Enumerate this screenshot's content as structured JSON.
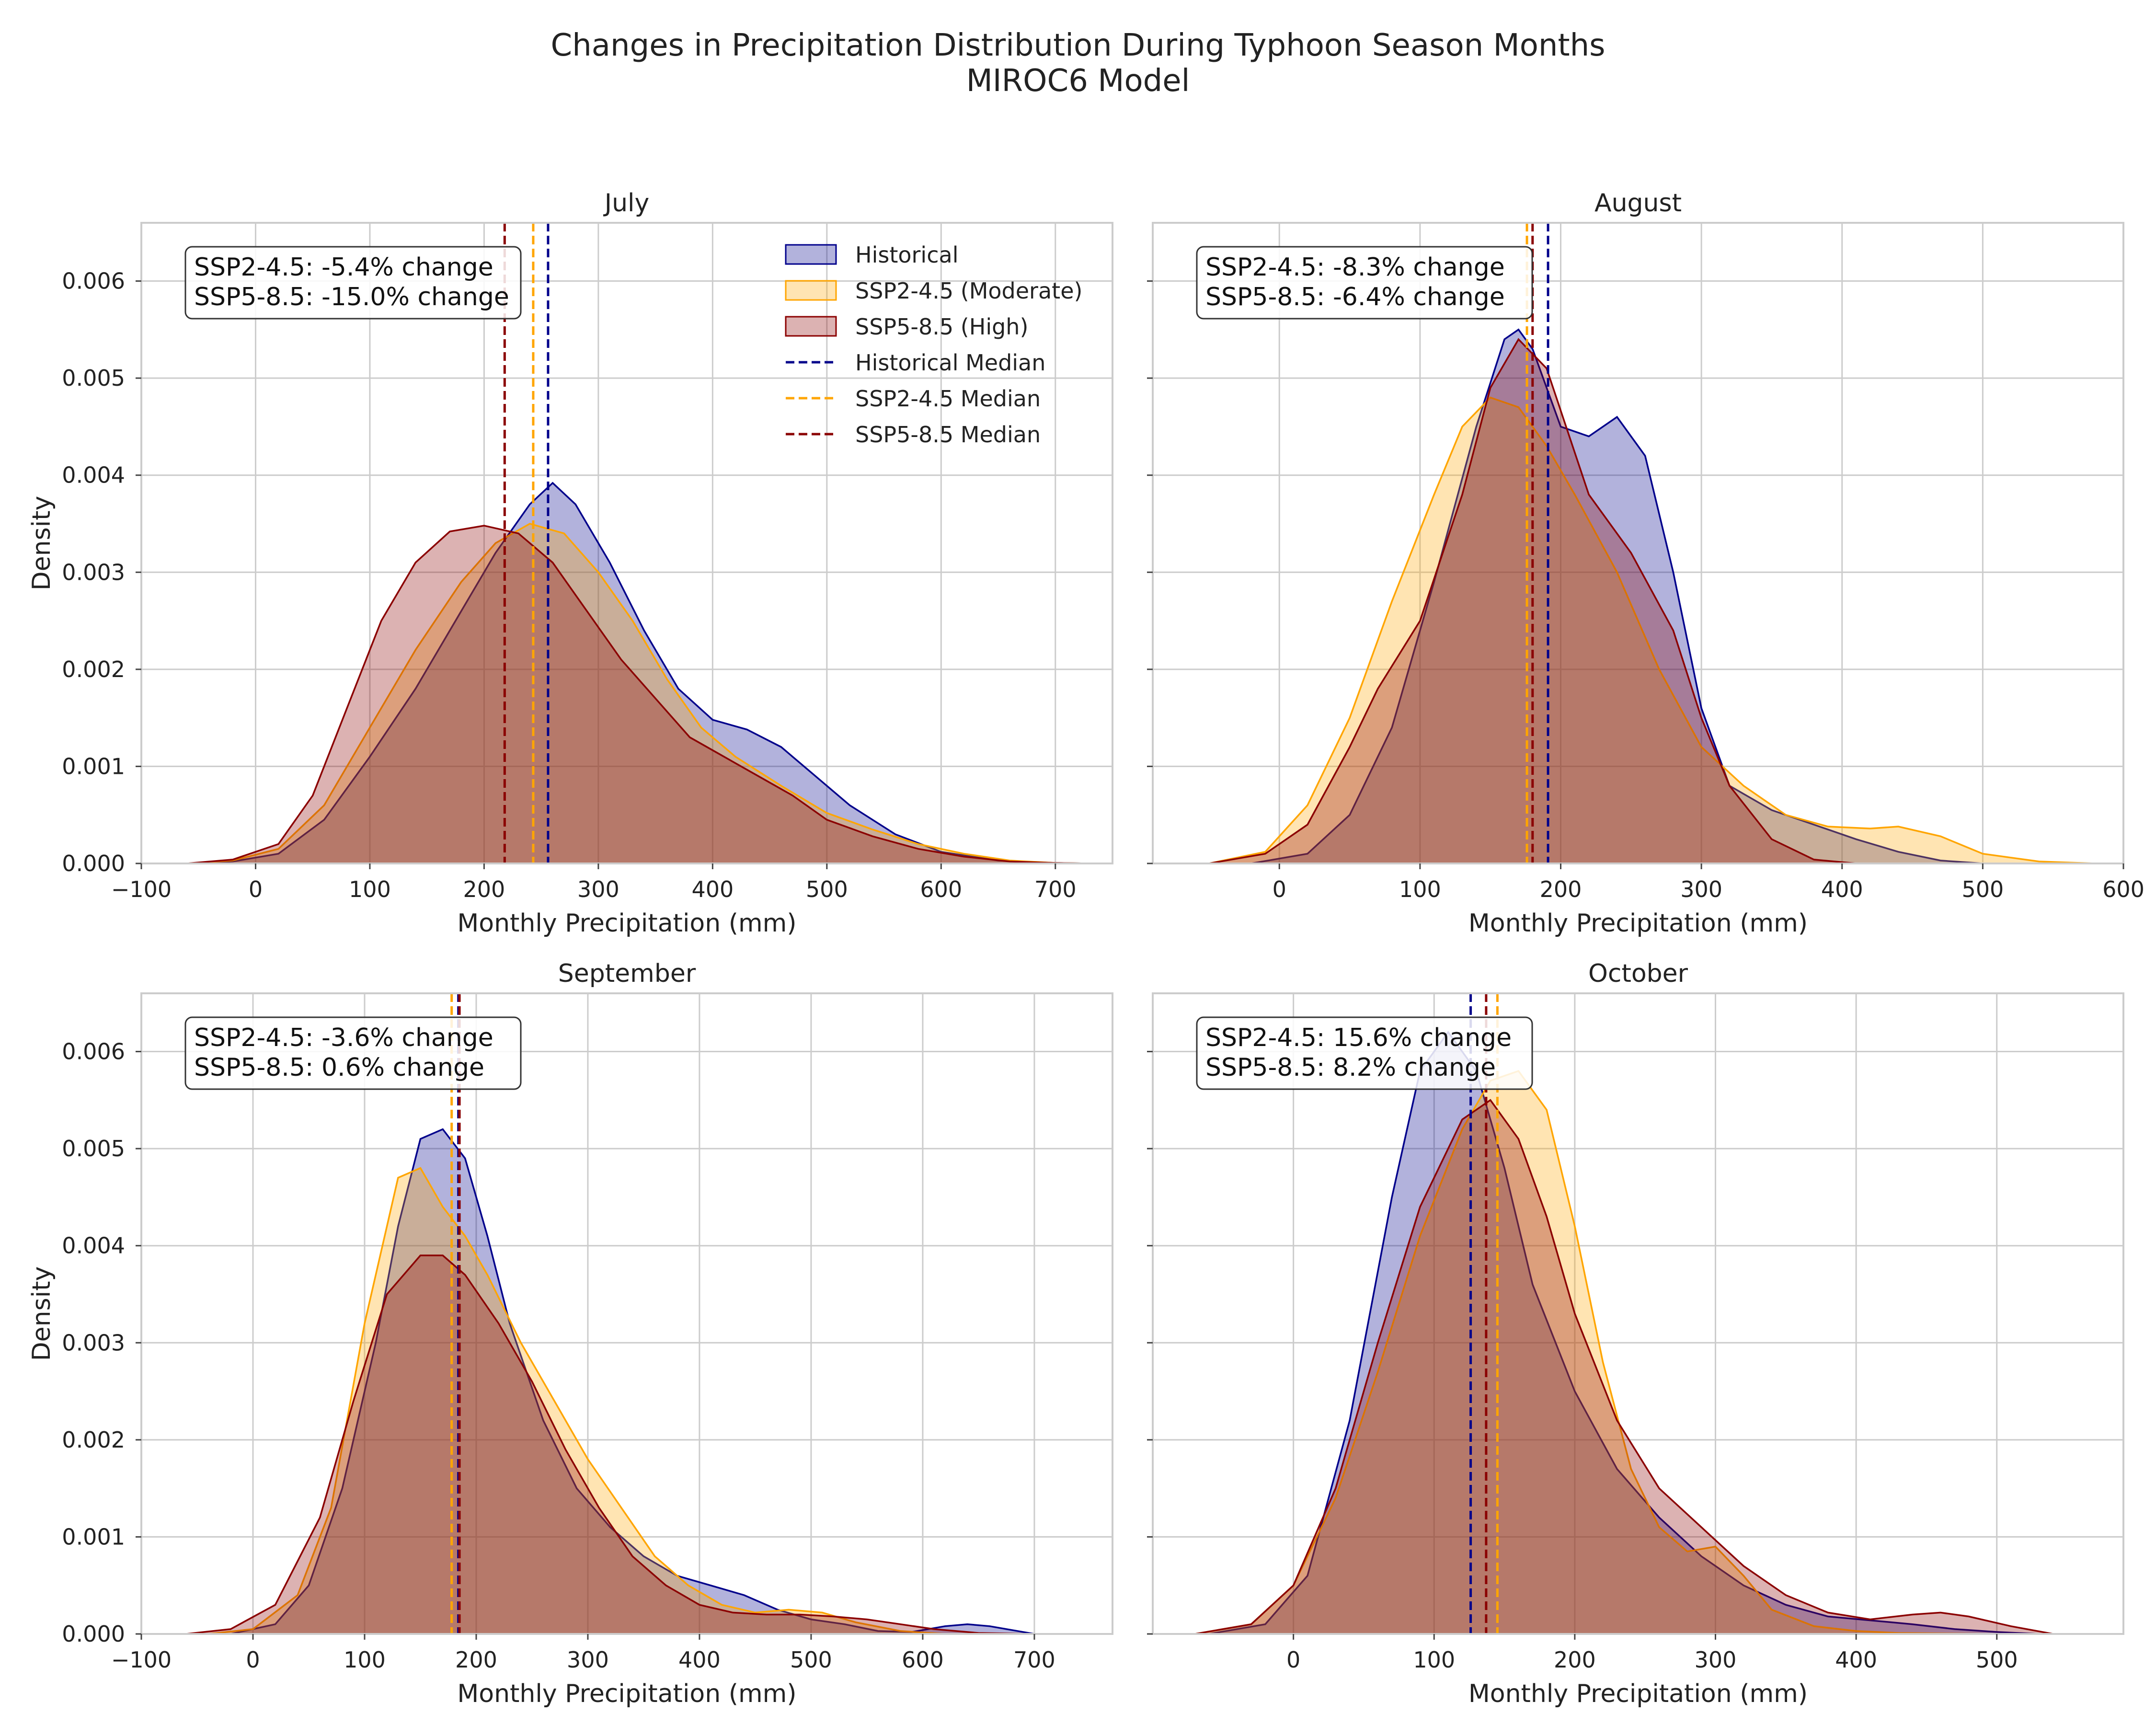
{
  "figure": {
    "title_line1": "Changes in Precipitation Distribution During Typhoon Season Months",
    "title_line2": "MIROC6 Model"
  },
  "colors": {
    "historical": "#00008B",
    "ssp245": "#FFA500",
    "ssp585": "#8B0000",
    "grid": "#CCCCCC",
    "spine": "#CCCCCC"
  },
  "legend": {
    "location": "upper-right (July panel)",
    "entries": [
      {
        "label": "Historical",
        "kind": "fill",
        "series": "historical"
      },
      {
        "label": "SSP2-4.5 (Moderate)",
        "kind": "fill",
        "series": "ssp245"
      },
      {
        "label": "SSP5-8.5 (High)",
        "kind": "fill",
        "series": "ssp585"
      },
      {
        "label": "Historical Median",
        "kind": "line",
        "series": "historical"
      },
      {
        "label": "SSP2-4.5 Median",
        "kind": "line",
        "series": "ssp245"
      },
      {
        "label": "SSP5-8.5 Median",
        "kind": "line",
        "series": "ssp585"
      }
    ]
  },
  "chart_data": [
    {
      "type": "area",
      "title": "July",
      "xlabel": "Monthly Precipitation (mm)",
      "ylabel": "Density",
      "xlim": [
        -100,
        750
      ],
      "ylim": [
        0,
        0.0066
      ],
      "xticks": [
        -100,
        0,
        100,
        200,
        300,
        400,
        500,
        600,
        700
      ],
      "yticks": [
        0,
        0.001,
        0.002,
        0.003,
        0.004,
        0.005,
        0.006
      ],
      "xtick_labels": [
        "−100",
        "0",
        "100",
        "200",
        "300",
        "400",
        "500",
        "600",
        "700"
      ],
      "ytick_labels": [
        "0.000",
        "0.001",
        "0.002",
        "0.003",
        "0.004",
        "0.005",
        "0.006"
      ],
      "annotation_lines": [
        "SSP2-4.5: -5.4% change",
        "SSP5-8.5: -15.0% change"
      ],
      "grid": true,
      "show_legend": true,
      "series": [
        {
          "key": "historical",
          "name": "Historical",
          "median": 256,
          "x": [
            -60,
            -20,
            20,
            60,
            100,
            140,
            180,
            210,
            240,
            260,
            280,
            310,
            340,
            370,
            400,
            430,
            460,
            490,
            520,
            560,
            600,
            650,
            700,
            730
          ],
          "y": [
            0,
            2e-05,
            0.0001,
            0.00045,
            0.0011,
            0.0018,
            0.0026,
            0.0032,
            0.0037,
            0.00392,
            0.0037,
            0.0031,
            0.0024,
            0.0018,
            0.00148,
            0.00138,
            0.0012,
            0.0009,
            0.0006,
            0.0003,
            0.00012,
            3e-05,
            5e-06,
            0
          ]
        },
        {
          "key": "ssp245",
          "name": "SSP2-4.5 (Moderate)",
          "median": 243,
          "x": [
            -60,
            -20,
            20,
            60,
            100,
            140,
            180,
            210,
            240,
            270,
            300,
            330,
            360,
            390,
            420,
            460,
            500,
            540,
            580,
            620,
            660,
            700,
            730
          ],
          "y": [
            0,
            3e-05,
            0.00015,
            0.0006,
            0.0014,
            0.0022,
            0.0029,
            0.0033,
            0.0035,
            0.0034,
            0.003,
            0.0025,
            0.0019,
            0.0014,
            0.0011,
            0.0008,
            0.00052,
            0.00035,
            0.0002,
            0.0001,
            3e-05,
            5e-06,
            0
          ]
        },
        {
          "key": "ssp585",
          "name": "SSP5-8.5 (High)",
          "median": 218,
          "x": [
            -60,
            -20,
            20,
            50,
            80,
            110,
            140,
            170,
            200,
            230,
            260,
            290,
            320,
            350,
            380,
            410,
            440,
            470,
            500,
            540,
            580,
            620,
            660,
            700,
            730
          ],
          "y": [
            0,
            4e-05,
            0.0002,
            0.0007,
            0.0016,
            0.0025,
            0.0031,
            0.00342,
            0.00348,
            0.0034,
            0.0031,
            0.0026,
            0.0021,
            0.0017,
            0.0013,
            0.0011,
            0.0009,
            0.0007,
            0.00045,
            0.00028,
            0.00015,
            7e-05,
            2e-05,
            5e-06,
            0
          ]
        }
      ]
    },
    {
      "type": "area",
      "title": "August",
      "xlabel": "Monthly Precipitation (mm)",
      "ylabel": "",
      "xlim": [
        -90,
        600
      ],
      "ylim": [
        0,
        0.0066
      ],
      "xticks": [
        0,
        100,
        200,
        300,
        400,
        500,
        600
      ],
      "yticks": [
        0,
        0.001,
        0.002,
        0.003,
        0.004,
        0.005,
        0.006
      ],
      "xtick_labels": [
        "0",
        "100",
        "200",
        "300",
        "400",
        "500",
        "600"
      ],
      "ytick_labels": [],
      "annotation_lines": [
        "SSP2-4.5: -8.3% change",
        "SSP5-8.5: -6.4% change"
      ],
      "grid": true,
      "show_legend": false,
      "series": [
        {
          "key": "historical",
          "name": "Historical",
          "median": 191,
          "x": [
            -20,
            20,
            50,
            80,
            110,
            140,
            160,
            170,
            180,
            200,
            220,
            240,
            260,
            280,
            300,
            320,
            350,
            380,
            410,
            440,
            470,
            500
          ],
          "y": [
            0,
            0.0001,
            0.0005,
            0.0014,
            0.0029,
            0.0045,
            0.0054,
            0.0055,
            0.0053,
            0.0045,
            0.0044,
            0.0046,
            0.0042,
            0.003,
            0.0016,
            0.0008,
            0.00055,
            0.0004,
            0.00025,
            0.00012,
            3e-05,
            0
          ]
        },
        {
          "key": "ssp245",
          "name": "SSP2-4.5 (Moderate)",
          "median": 176,
          "x": [
            -50,
            -10,
            20,
            50,
            80,
            110,
            130,
            150,
            170,
            190,
            210,
            240,
            270,
            300,
            330,
            360,
            390,
            420,
            440,
            470,
            500,
            540,
            580
          ],
          "y": [
            0,
            0.00012,
            0.0006,
            0.0015,
            0.0027,
            0.0038,
            0.0045,
            0.0048,
            0.0047,
            0.0043,
            0.0038,
            0.003,
            0.002,
            0.0012,
            0.0008,
            0.0005,
            0.00038,
            0.00036,
            0.00038,
            0.00028,
            0.0001,
            2e-05,
            0
          ]
        },
        {
          "key": "ssp585",
          "name": "SSP5-8.5 (High)",
          "median": 180,
          "x": [
            -50,
            -10,
            20,
            50,
            70,
            100,
            130,
            150,
            170,
            190,
            220,
            250,
            280,
            300,
            320,
            350,
            380,
            410
          ],
          "y": [
            0,
            0.0001,
            0.0004,
            0.0012,
            0.0018,
            0.0025,
            0.0038,
            0.0049,
            0.0054,
            0.0051,
            0.0038,
            0.0032,
            0.0024,
            0.0015,
            0.0008,
            0.00025,
            4e-05,
            0
          ]
        }
      ]
    },
    {
      "type": "area",
      "title": "September",
      "xlabel": "Monthly Precipitation (mm)",
      "ylabel": "Density",
      "xlim": [
        -100,
        770
      ],
      "ylim": [
        0,
        0.0066
      ],
      "xticks": [
        -100,
        0,
        100,
        200,
        300,
        400,
        500,
        600,
        700
      ],
      "yticks": [
        0,
        0.001,
        0.002,
        0.003,
        0.004,
        0.005,
        0.006
      ],
      "xtick_labels": [
        "−100",
        "0",
        "100",
        "200",
        "300",
        "400",
        "500",
        "600",
        "700"
      ],
      "ytick_labels": [
        "0.000",
        "0.001",
        "0.002",
        "0.003",
        "0.004",
        "0.005",
        "0.006"
      ],
      "annotation_lines": [
        "SSP2-4.5: -3.6% change",
        "SSP5-8.5: 0.6% change"
      ],
      "grid": true,
      "show_legend": false,
      "series": [
        {
          "key": "historical",
          "name": "Historical",
          "median": 184,
          "x": [
            -20,
            20,
            50,
            80,
            110,
            130,
            150,
            170,
            190,
            210,
            230,
            260,
            290,
            320,
            350,
            380,
            410,
            440,
            470,
            500,
            530,
            560,
            590,
            620,
            640,
            660,
            700
          ],
          "y": [
            0,
            0.0001,
            0.0005,
            0.0015,
            0.003,
            0.0042,
            0.0051,
            0.0052,
            0.0049,
            0.0041,
            0.0032,
            0.0022,
            0.0015,
            0.0011,
            0.0008,
            0.0006,
            0.0005,
            0.0004,
            0.00025,
            0.00015,
            0.0001,
            3e-05,
            2e-05,
            8e-05,
            0.0001,
            8e-05,
            0
          ]
        },
        {
          "key": "ssp245",
          "name": "SSP2-4.5 (Moderate)",
          "median": 178,
          "x": [
            -40,
            0,
            40,
            70,
            100,
            130,
            150,
            170,
            190,
            210,
            240,
            270,
            300,
            330,
            360,
            390,
            420,
            450,
            480,
            510,
            540,
            580,
            620
          ],
          "y": [
            0,
            5e-05,
            0.0004,
            0.0013,
            0.0032,
            0.0047,
            0.0048,
            0.0044,
            0.0041,
            0.0037,
            0.003,
            0.0024,
            0.0018,
            0.0013,
            0.0008,
            0.0005,
            0.0003,
            0.00022,
            0.00025,
            0.00022,
            0.00012,
            3e-05,
            0
          ]
        },
        {
          "key": "ssp585",
          "name": "SSP5-8.5 (High)",
          "median": 185,
          "x": [
            -60,
            -20,
            20,
            60,
            90,
            120,
            150,
            170,
            190,
            220,
            250,
            280,
            310,
            340,
            370,
            400,
            430,
            460,
            490,
            520,
            550,
            580,
            610,
            650,
            700
          ],
          "y": [
            0,
            5e-05,
            0.0003,
            0.0012,
            0.0024,
            0.0035,
            0.0039,
            0.0039,
            0.0037,
            0.0032,
            0.0026,
            0.0019,
            0.0013,
            0.0008,
            0.0005,
            0.0003,
            0.00022,
            0.0002,
            0.0002,
            0.00018,
            0.00015,
            0.0001,
            5e-05,
            1e-05,
            0
          ]
        }
      ]
    },
    {
      "type": "area",
      "title": "October",
      "xlabel": "Monthly Precipitation (mm)",
      "ylabel": "",
      "xlim": [
        -100,
        590
      ],
      "ylim": [
        0,
        0.0066
      ],
      "xticks": [
        0,
        100,
        200,
        300,
        400,
        500
      ],
      "yticks": [
        0,
        0.001,
        0.002,
        0.003,
        0.004,
        0.005,
        0.006
      ],
      "xtick_labels": [
        "0",
        "100",
        "200",
        "300",
        "400",
        "500"
      ],
      "ytick_labels": [],
      "annotation_lines": [
        "SSP2-4.5: 15.6% change",
        "SSP5-8.5: 8.2% change"
      ],
      "grid": true,
      "show_legend": false,
      "series": [
        {
          "key": "historical",
          "name": "Historical",
          "median": 126,
          "x": [
            -60,
            -20,
            10,
            40,
            70,
            90,
            110,
            130,
            150,
            170,
            200,
            230,
            260,
            290,
            320,
            350,
            380,
            410,
            440,
            470,
            500,
            530
          ],
          "y": [
            0,
            0.0001,
            0.0006,
            0.0022,
            0.0045,
            0.0058,
            0.0062,
            0.0058,
            0.0048,
            0.0036,
            0.0025,
            0.0017,
            0.0012,
            0.0008,
            0.0005,
            0.0003,
            0.00018,
            0.00014,
            0.0001,
            5e-05,
            2e-05,
            0
          ]
        },
        {
          "key": "ssp245",
          "name": "SSP2-4.5 (Moderate)",
          "median": 145,
          "x": [
            -70,
            -30,
            0,
            30,
            60,
            90,
            120,
            140,
            160,
            180,
            200,
            220,
            240,
            260,
            280,
            300,
            320,
            340,
            370,
            400,
            430,
            460,
            500
          ],
          "y": [
            0,
            0.0001,
            0.0005,
            0.0014,
            0.0027,
            0.0041,
            0.0052,
            0.0057,
            0.0058,
            0.0054,
            0.0042,
            0.0028,
            0.0017,
            0.0011,
            0.00085,
            0.0009,
            0.0006,
            0.00025,
            8e-05,
            3e-05,
            1e-05,
            5e-06,
            0
          ]
        },
        {
          "key": "ssp585",
          "name": "SSP5-8.5 (High)",
          "median": 137,
          "x": [
            -70,
            -30,
            0,
            30,
            60,
            90,
            120,
            140,
            160,
            180,
            200,
            230,
            260,
            290,
            320,
            350,
            380,
            410,
            440,
            460,
            480,
            510,
            540
          ],
          "y": [
            0,
            0.0001,
            0.0005,
            0.0015,
            0.003,
            0.0044,
            0.0053,
            0.0055,
            0.0051,
            0.0043,
            0.0033,
            0.0022,
            0.0015,
            0.0011,
            0.0007,
            0.0004,
            0.00022,
            0.00015,
            0.0002,
            0.00022,
            0.00018,
            8e-05,
            0
          ]
        }
      ]
    }
  ]
}
